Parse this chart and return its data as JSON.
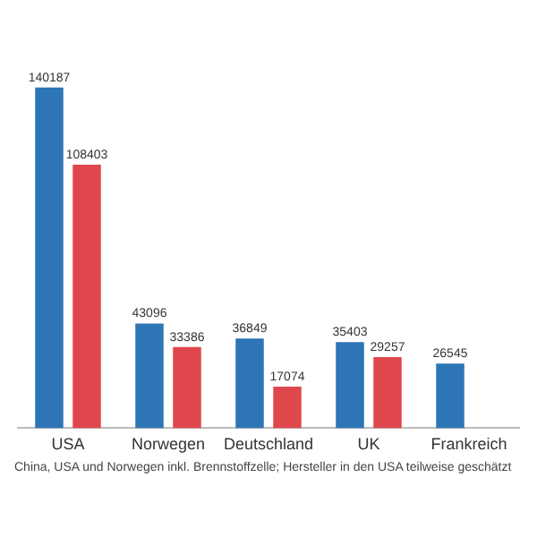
{
  "chart_data": {
    "type": "bar",
    "categories": [
      "USA",
      "Norwegen",
      "Deutschland",
      "UK",
      "Frankreich"
    ],
    "series": [
      {
        "color": "#2e75b6",
        "values": [
          140187,
          43096,
          36849,
          35403,
          26545
        ]
      },
      {
        "color": "#e0474c",
        "values": [
          108403,
          33386,
          17074,
          29257,
          null
        ]
      }
    ],
    "data_labels": true,
    "grid": false,
    "legend": false,
    "annotations": [
      "China, USA und Norwegen inkl. Brennstoffzelle; Hersteller in den USA teilweise geschätzt"
    ]
  }
}
